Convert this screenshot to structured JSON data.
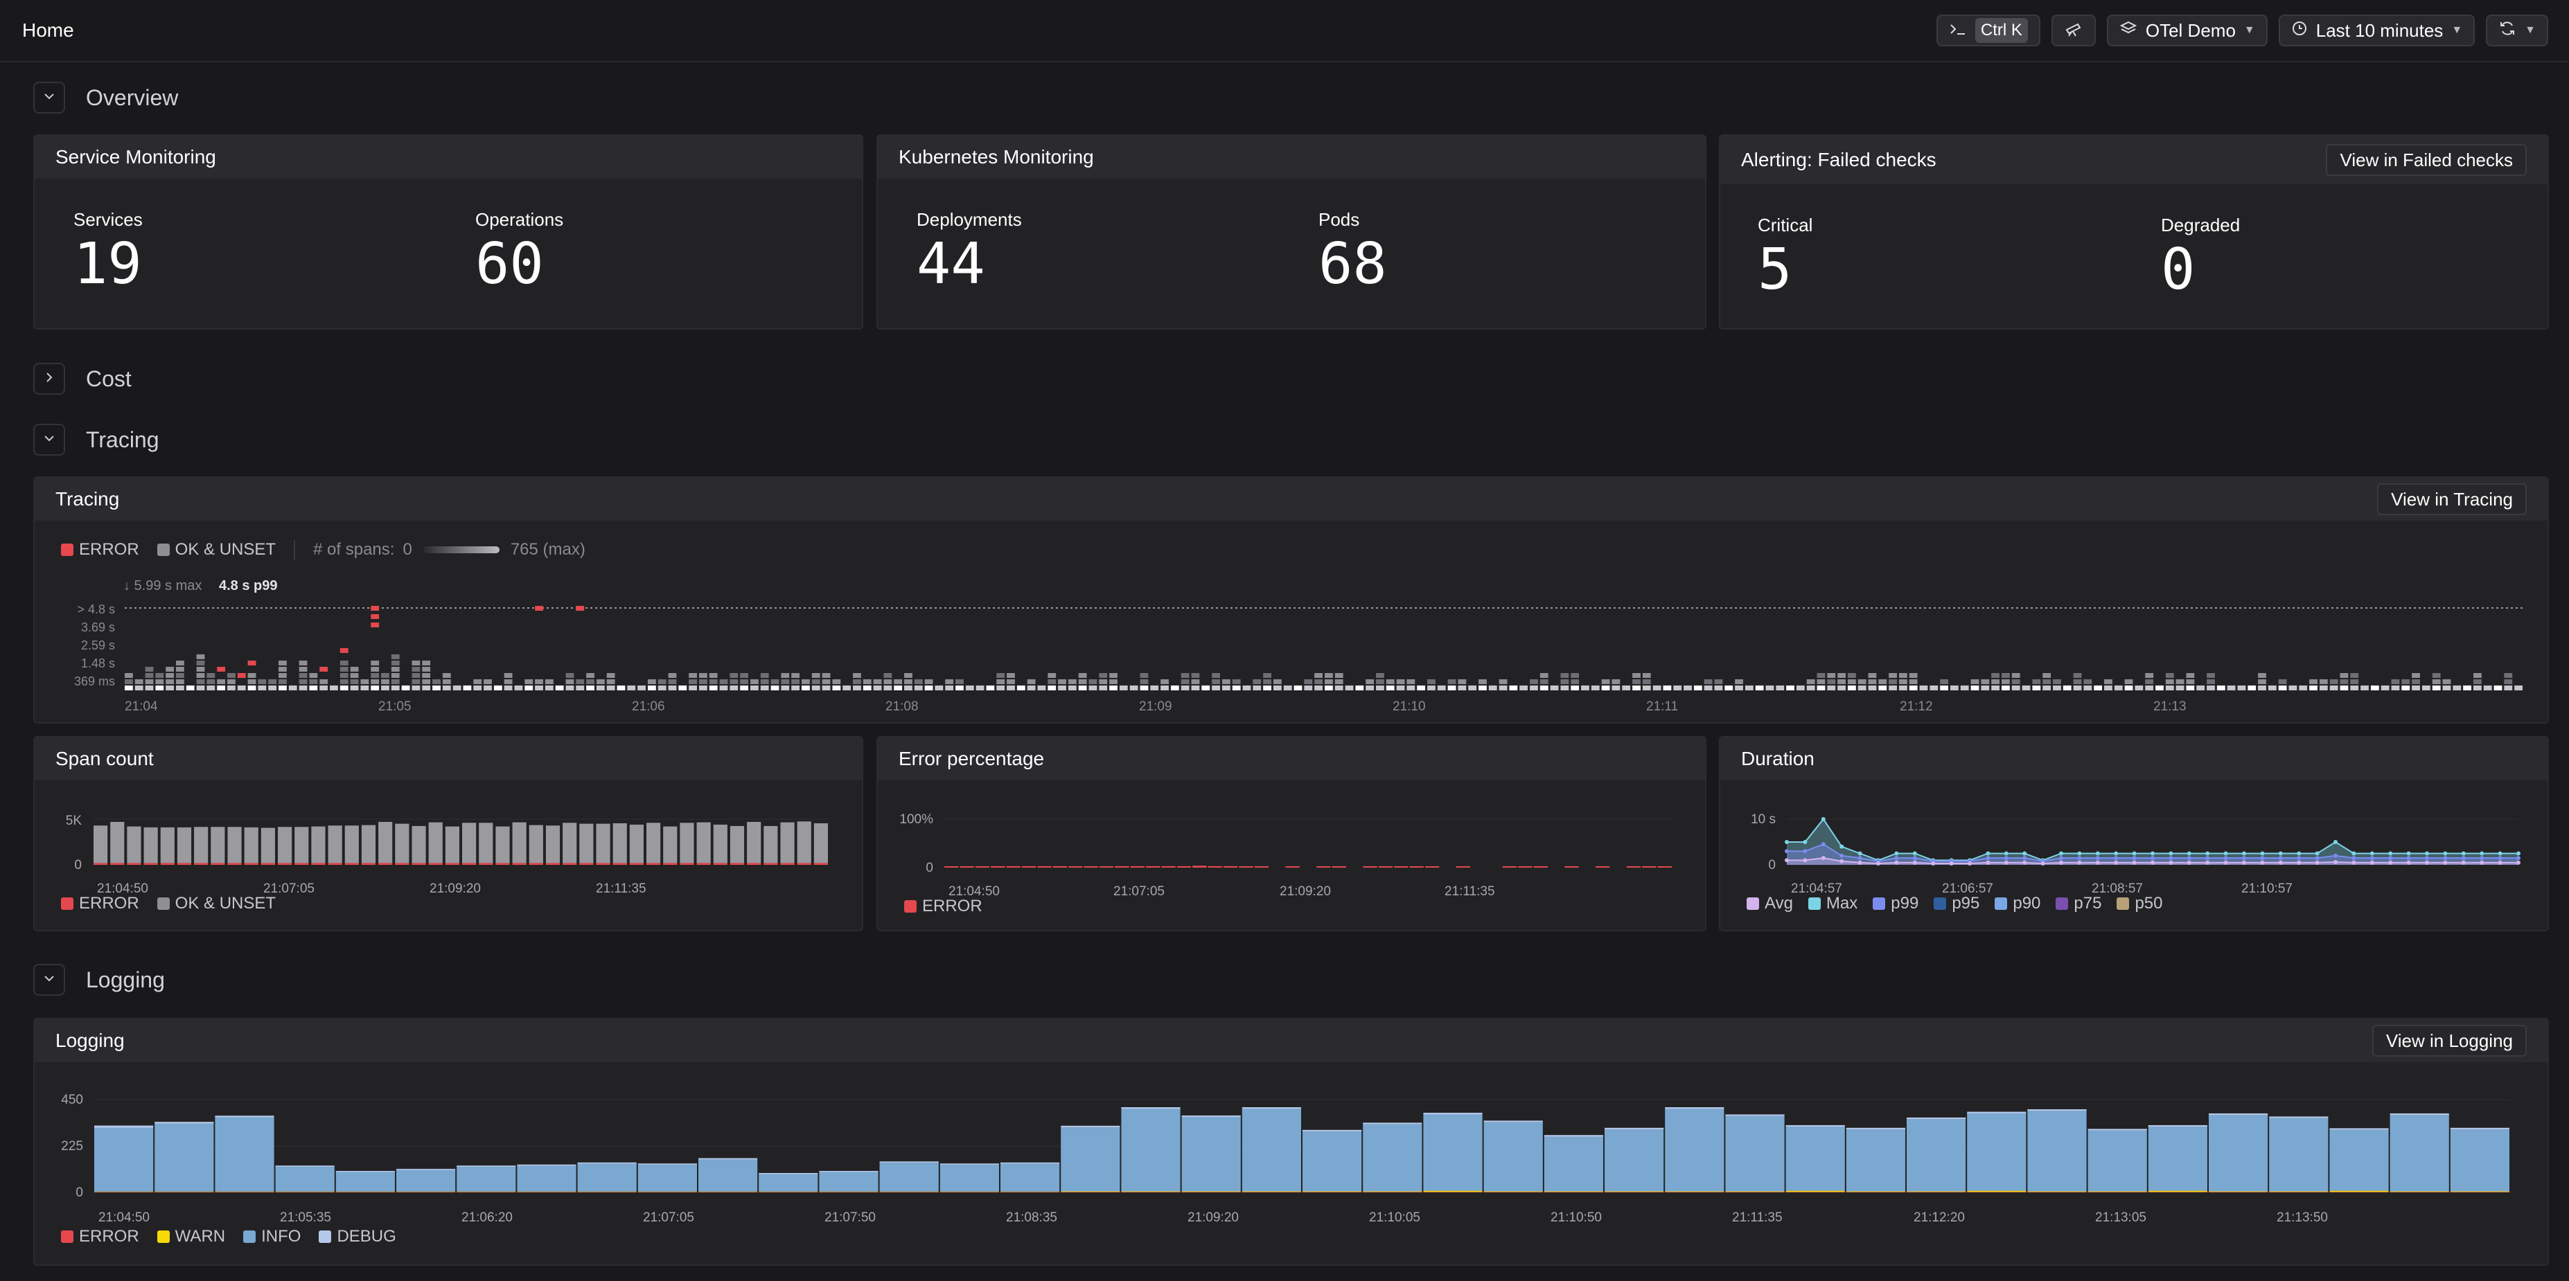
{
  "header": {
    "title": "Home",
    "shortcut_label": "Ctrl K",
    "environment": "OTel Demo",
    "time_range": "Last 10 minutes"
  },
  "sections": {
    "overview": "Overview",
    "cost": "Cost",
    "tracing": "Tracing",
    "logging": "Logging"
  },
  "service_monitoring": {
    "title": "Service Monitoring",
    "stats": [
      {
        "label": "Services",
        "value": "19"
      },
      {
        "label": "Operations",
        "value": "60"
      }
    ]
  },
  "kubernetes_monitoring": {
    "title": "Kubernetes Monitoring",
    "stats": [
      {
        "label": "Deployments",
        "value": "44"
      },
      {
        "label": "Pods",
        "value": "68"
      }
    ]
  },
  "alerting": {
    "title": "Alerting: Failed checks",
    "link": "View in Failed checks",
    "stats": [
      {
        "label": "Critical",
        "value": "5"
      },
      {
        "label": "Degraded",
        "value": "0"
      }
    ]
  },
  "tracing_panel": {
    "title": "Tracing",
    "link": "View in Tracing",
    "legend": {
      "error": "ERROR",
      "ok": "OK & UNSET",
      "spans_label": "# of spans:",
      "spans_min": "0",
      "spans_max": "765 (max)"
    },
    "max_label": "↓ 5.99 s max",
    "p99_label": "4.8 s p99",
    "y_ticks": [
      "> 4.8 s",
      "3.69 s",
      "2.59 s",
      "1.48 s",
      "369 ms"
    ],
    "x_ticks": [
      "21:04",
      "21:05",
      "21:06",
      "21:08",
      "21:09",
      "21:10",
      "21:11",
      "21:12",
      "21:13"
    ]
  },
  "span_count": {
    "title": "Span count",
    "legend": [
      "ERROR",
      "OK & UNSET"
    ]
  },
  "error_percentage": {
    "title": "Error percentage",
    "legend": [
      "ERROR"
    ]
  },
  "duration": {
    "title": "Duration",
    "legend": [
      "Avg",
      "Max",
      "p99",
      "p95",
      "p90",
      "p75",
      "p50"
    ]
  },
  "logging_panel": {
    "title": "Logging",
    "link": "View in Logging",
    "legend": [
      "ERROR",
      "WARN",
      "INFO",
      "DEBUG"
    ]
  },
  "colors": {
    "error": "#e5484d",
    "ok": "#8e8e93",
    "warn": "#f5d90a",
    "info": "#7aa8d0",
    "debug": "#b4c8ea"
  },
  "chart_data": [
    {
      "type": "bar",
      "name": "Span count",
      "x_ticks": [
        "21:04:50",
        "21:07:05",
        "21:09:20",
        "21:11:35"
      ],
      "y_ticks": [
        "5K",
        "0"
      ],
      "ylim": [
        0,
        5000
      ],
      "series": [
        {
          "name": "OK & UNSET",
          "values": [
            4100,
            4500,
            4000,
            3900,
            3900,
            3900,
            3950,
            3950,
            3950,
            3900,
            3850,
            3950,
            3950,
            4000,
            4100,
            4100,
            4150,
            4500,
            4300,
            4050,
            4450,
            4000,
            4400,
            4400,
            4000,
            4450,
            4150,
            4100,
            4400,
            4300,
            4300,
            4350,
            4200,
            4400,
            4000,
            4400,
            4450,
            4200,
            4050,
            4500,
            4050,
            4450,
            4550,
            4350
          ]
        },
        {
          "name": "ERROR",
          "values": [
            200,
            200,
            200,
            200,
            200,
            200,
            200,
            200,
            200,
            200,
            200,
            200,
            200,
            200,
            200,
            200,
            200,
            200,
            200,
            200,
            200,
            200,
            200,
            200,
            200,
            200,
            200,
            200,
            200,
            200,
            200,
            200,
            200,
            200,
            200,
            200,
            200,
            200,
            200,
            200,
            200,
            200,
            200,
            200
          ]
        }
      ]
    },
    {
      "type": "bar",
      "name": "Error percentage",
      "x_ticks": [
        "21:04:50",
        "21:07:05",
        "21:09:20",
        "21:11:35"
      ],
      "y_ticks": [
        "100%",
        "0"
      ],
      "ylim": [
        0,
        100
      ],
      "series": [
        {
          "name": "ERROR",
          "values": [
            2,
            2,
            2,
            3,
            3,
            3,
            3,
            3,
            2,
            2,
            2,
            3,
            3,
            3,
            3,
            3,
            4,
            3,
            3,
            2,
            2,
            0,
            2,
            0,
            1,
            1,
            0,
            1,
            1,
            1,
            1,
            1,
            0,
            1,
            0,
            0,
            1,
            1,
            1,
            0,
            1,
            0,
            1,
            0,
            1,
            1,
            1
          ]
        }
      ]
    },
    {
      "type": "line",
      "name": "Duration",
      "x_ticks": [
        "21:04:57",
        "21:06:57",
        "21:08:57",
        "21:10:57"
      ],
      "y_ticks": [
        "10 s",
        "0"
      ],
      "ylim": [
        0,
        10
      ],
      "series": [
        {
          "name": "Max",
          "values": [
            5,
            5,
            10,
            4,
            2.5,
            1,
            2.5,
            2.5,
            1,
            1,
            1,
            2.5,
            2.5,
            2.5,
            1,
            2.5,
            2.5,
            2.5,
            2.5,
            2.5,
            2.5,
            2.5,
            2.5,
            2.5,
            2.5,
            2.5,
            2.5,
            2.5,
            2.5,
            2.5,
            5,
            2.5,
            2.5,
            2.5,
            2.5,
            2.5,
            2.5,
            2.5,
            2.5,
            2.5,
            2.5
          ]
        },
        {
          "name": "p99",
          "values": [
            3,
            3,
            4.5,
            2,
            1.5,
            0.8,
            1.5,
            1.5,
            0.8,
            0.8,
            0.8,
            1.5,
            1.5,
            1.5,
            0.8,
            1.5,
            1.5,
            1.5,
            1.5,
            1.5,
            1.5,
            1.5,
            1.5,
            1.5,
            1.5,
            1.5,
            1.5,
            1.5,
            1.5,
            1.5,
            2,
            1.5,
            1.5,
            1.5,
            1.5,
            1.5,
            1.5,
            1.5,
            1.5,
            1.5,
            1.5
          ]
        },
        {
          "name": "Avg",
          "values": [
            1,
            1,
            1.5,
            0.8,
            0.5,
            0.3,
            0.5,
            0.5,
            0.3,
            0.3,
            0.3,
            0.5,
            0.5,
            0.5,
            0.3,
            0.5,
            0.5,
            0.5,
            0.5,
            0.5,
            0.5,
            0.5,
            0.5,
            0.5,
            0.5,
            0.5,
            0.5,
            0.5,
            0.5,
            0.5,
            0.6,
            0.5,
            0.5,
            0.5,
            0.5,
            0.5,
            0.5,
            0.5,
            0.5,
            0.5,
            0.5
          ]
        }
      ]
    },
    {
      "type": "bar",
      "name": "Logging",
      "x_ticks": [
        "21:04:50",
        "21:05:35",
        "21:06:20",
        "21:07:05",
        "21:07:50",
        "21:08:35",
        "21:09:20",
        "21:10:05",
        "21:10:50",
        "21:11:35",
        "21:12:20",
        "21:13:05",
        "21:13:50"
      ],
      "y_ticks": [
        "450",
        "225",
        "0"
      ],
      "ylim": [
        0,
        450
      ],
      "series": [
        {
          "name": "INFO",
          "values": [
            310,
            330,
            360,
            120,
            95,
            105,
            120,
            125,
            135,
            130,
            155,
            85,
            95,
            140,
            130,
            135,
            310,
            400,
            360,
            400,
            290,
            325,
            370,
            335,
            265,
            300,
            400,
            365,
            310,
            300,
            350,
            375,
            390,
            295,
            310,
            370,
            355,
            295,
            370,
            300
          ]
        },
        {
          "name": "DEBUG",
          "values": [
            10,
            8,
            8,
            6,
            5,
            5,
            6,
            6,
            6,
            6,
            7,
            5,
            5,
            6,
            6,
            6,
            8,
            8,
            8,
            8,
            8,
            8,
            8,
            8,
            8,
            8,
            8,
            8,
            8,
            8,
            8,
            8,
            8,
            8,
            8,
            8,
            8,
            8,
            8,
            8
          ]
        },
        {
          "name": "WARN",
          "values": [
            2,
            2,
            2,
            2,
            2,
            2,
            2,
            2,
            2,
            2,
            2,
            2,
            2,
            2,
            2,
            2,
            3,
            3,
            3,
            3,
            3,
            3,
            6,
            3,
            3,
            3,
            3,
            3,
            6,
            3,
            3,
            6,
            3,
            3,
            6,
            3,
            3,
            6,
            3,
            3
          ]
        },
        {
          "name": "ERROR",
          "values": [
            2,
            2,
            2,
            2,
            2,
            2,
            2,
            2,
            2,
            2,
            2,
            2,
            2,
            2,
            2,
            2,
            2,
            2,
            2,
            2,
            2,
            2,
            2,
            2,
            2,
            2,
            2,
            2,
            2,
            2,
            2,
            2,
            2,
            2,
            2,
            2,
            2,
            2,
            2,
            2
          ]
        }
      ]
    }
  ]
}
